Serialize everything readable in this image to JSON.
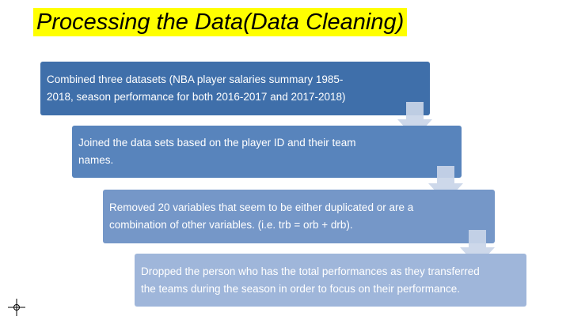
{
  "slide": {
    "title": "Processing the Data(Data Cleaning)",
    "steps": [
      {
        "text": "Combined three datasets (NBA player salaries summary 1985-2018, season performance for both 2016-2017 and 2017-2018)"
      },
      {
        "text": "Joined the data sets based on the player ID and their team names."
      },
      {
        "text": "Removed 20 variables that seem to be either duplicated or are a combination of other variables. (i.e. trb = orb + drb)."
      },
      {
        "text": "Dropped the person who has the total performances as they transferred the teams during the season in order to focus on their performance."
      }
    ]
  },
  "colors": {
    "title_highlight": "#ffff00",
    "step1": "#3f6faa",
    "step2": "#5884bc",
    "step3": "#7597c8",
    "step4": "#9fb6da",
    "arrow": "#c9d5e8"
  },
  "icons": {
    "arrows": "down-arrow-icon",
    "cursor": "crosshair-icon"
  }
}
